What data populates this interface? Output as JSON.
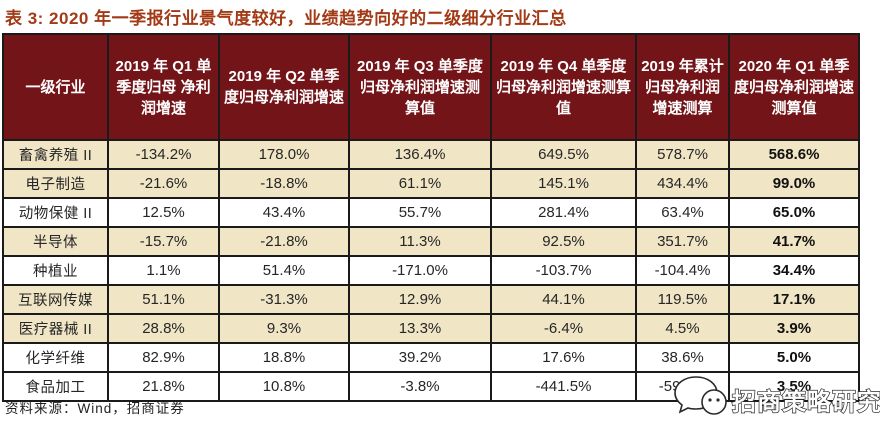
{
  "title": "表 3: 2020 年一季报行业景气度较好，业绩趋势向好的二级细分行业汇总",
  "table": {
    "columns": [
      "一级行业",
      "2019 年 Q1 单季度归母 净利润增速",
      "2019 年 Q2 单季度归母净利润增速",
      "2019 年 Q3 单季度归母净利润增速测算值",
      "2019 年 Q4 单季度归母净利润增速测算值",
      "2019 年累计归母净利润增速测算",
      "2020 年 Q1 单季度归母净利润增速测算值"
    ],
    "rows": [
      {
        "industry": "畜禽养殖 II",
        "values": [
          "-134.2%",
          "178.0%",
          "136.4%",
          "649.5%",
          "578.7%",
          "568.6%"
        ],
        "shaded": true
      },
      {
        "industry": "电子制造",
        "values": [
          "-21.6%",
          "-18.8%",
          "61.1%",
          "145.1%",
          "434.4%",
          "99.0%"
        ],
        "shaded": true
      },
      {
        "industry": "动物保健 II",
        "values": [
          "12.5%",
          "43.4%",
          "55.7%",
          "281.4%",
          "63.4%",
          "65.0%"
        ],
        "shaded": false
      },
      {
        "industry": "半导体",
        "values": [
          "-15.7%",
          "-21.8%",
          "11.3%",
          "92.5%",
          "351.7%",
          "41.7%"
        ],
        "shaded": true
      },
      {
        "industry": "种植业",
        "values": [
          "1.1%",
          "51.4%",
          "-171.0%",
          "-103.7%",
          "-104.4%",
          "34.4%"
        ],
        "shaded": false
      },
      {
        "industry": "互联网传媒",
        "values": [
          "51.1%",
          "-31.3%",
          "12.9%",
          "44.1%",
          "119.5%",
          "17.1%"
        ],
        "shaded": true
      },
      {
        "industry": "医疗器械 II",
        "values": [
          "28.8%",
          "9.3%",
          "13.3%",
          "-6.4%",
          "4.5%",
          "3.9%"
        ],
        "shaded": true
      },
      {
        "industry": "化学纤维",
        "values": [
          "82.9%",
          "18.8%",
          "39.2%",
          "17.6%",
          "38.6%",
          "5.0%"
        ],
        "shaded": false
      },
      {
        "industry": "食品加工",
        "values": [
          "21.8%",
          "10.8%",
          "-3.8%",
          "-441.5%",
          "-59.6%",
          "3.5%"
        ],
        "shaded": false
      }
    ]
  },
  "source_note": "资料来源：Wind，招商证券",
  "watermark": {
    "text": "招商策略研究",
    "logo": "speech-bubbles-icon"
  },
  "colors": {
    "title_text": "#A23A16",
    "header_bg": "#731418",
    "header_text": "#FFFFFF",
    "row_shaded_bg": "#F0E5C5",
    "row_plain_bg": "#FFFFFF",
    "border": "#1A1A1A",
    "body_text": "#262626"
  }
}
